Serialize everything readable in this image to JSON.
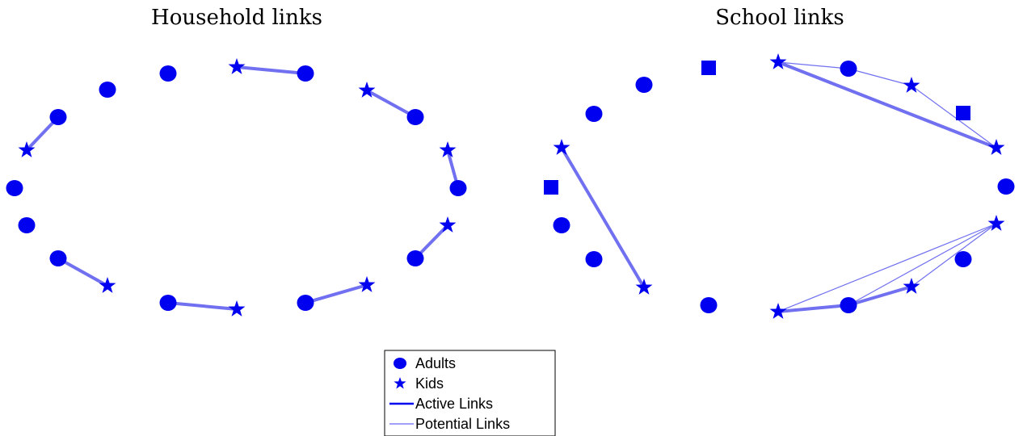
{
  "panels": [
    {
      "title": "Household links",
      "nodes": [
        {
          "id": "h1",
          "shape": "circle"
        },
        {
          "id": "h2",
          "shape": "circle"
        },
        {
          "id": "h3",
          "shape": "star"
        },
        {
          "id": "h4",
          "shape": "circle"
        },
        {
          "id": "h5",
          "shape": "star"
        },
        {
          "id": "h6",
          "shape": "circle"
        },
        {
          "id": "h7",
          "shape": "star"
        },
        {
          "id": "h8",
          "shape": "circle"
        },
        {
          "id": "h9",
          "shape": "star"
        },
        {
          "id": "h10",
          "shape": "circle"
        },
        {
          "id": "h11",
          "shape": "star"
        },
        {
          "id": "h12",
          "shape": "circle"
        },
        {
          "id": "h13",
          "shape": "star"
        },
        {
          "id": "h14",
          "shape": "circle"
        },
        {
          "id": "h15",
          "shape": "circle"
        },
        {
          "id": "h16",
          "shape": "star"
        },
        {
          "id": "h17",
          "shape": "circle"
        },
        {
          "id": "h18",
          "shape": "circle"
        }
      ],
      "links": [
        {
          "from": "h3",
          "to": "h4",
          "type": "active"
        },
        {
          "from": "h5",
          "to": "h6",
          "type": "active"
        },
        {
          "from": "h7",
          "to": "h8",
          "type": "active"
        },
        {
          "from": "h9",
          "to": "h10",
          "type": "active"
        },
        {
          "from": "h11",
          "to": "h12",
          "type": "active"
        },
        {
          "from": "h13",
          "to": "h14",
          "type": "active"
        },
        {
          "from": "h15",
          "to": "h16",
          "type": "active"
        },
        {
          "from": "h17",
          "to": "h18",
          "type": "active"
        }
      ]
    },
    {
      "title": "School links",
      "nodes": [
        {
          "id": "s1",
          "shape": "circle"
        },
        {
          "id": "s2",
          "shape": "square"
        },
        {
          "id": "s3",
          "shape": "star"
        },
        {
          "id": "s4",
          "shape": "circle"
        },
        {
          "id": "s5",
          "shape": "star"
        },
        {
          "id": "s6",
          "shape": "square"
        },
        {
          "id": "s7",
          "shape": "star"
        },
        {
          "id": "s8",
          "shape": "circle"
        },
        {
          "id": "s9",
          "shape": "star"
        },
        {
          "id": "s10",
          "shape": "circle"
        },
        {
          "id": "s11",
          "shape": "star"
        },
        {
          "id": "s12",
          "shape": "circle"
        },
        {
          "id": "s13",
          "shape": "star"
        },
        {
          "id": "s14",
          "shape": "circle"
        },
        {
          "id": "s15",
          "shape": "star"
        },
        {
          "id": "s16",
          "shape": "circle"
        },
        {
          "id": "s17",
          "shape": "circle"
        },
        {
          "id": "s18",
          "shape": "square"
        }
      ],
      "links": [
        {
          "from": "s3",
          "to": "s7",
          "type": "active"
        },
        {
          "from": "s3",
          "to": "s4",
          "type": "potential"
        },
        {
          "from": "s4",
          "to": "s5",
          "type": "potential"
        },
        {
          "from": "s5",
          "to": "s7",
          "type": "potential"
        },
        {
          "from": "s9",
          "to": "s11",
          "type": "potential"
        },
        {
          "from": "s9",
          "to": "s12",
          "type": "potential"
        },
        {
          "from": "s9",
          "to": "s13",
          "type": "potential"
        },
        {
          "from": "s11",
          "to": "s12",
          "type": "active"
        },
        {
          "from": "s12",
          "to": "s13",
          "type": "active"
        },
        {
          "from": "s15",
          "to": "s18",
          "type": "active"
        }
      ]
    }
  ],
  "legend": {
    "items": [
      {
        "label": "Adults",
        "symbol": "circle"
      },
      {
        "label": "Kids",
        "symbol": "star"
      },
      {
        "label": "Active Links",
        "symbol": "line-thick"
      },
      {
        "label": "Potential Links",
        "symbol": "line-thin"
      }
    ]
  },
  "colors": {
    "node": "#0000f0",
    "link": "#7070f0",
    "legend_line": "#0000f0"
  }
}
